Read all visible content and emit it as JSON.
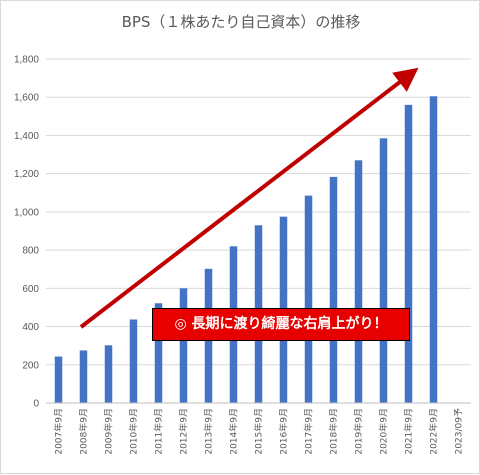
{
  "chart_data": {
    "type": "bar",
    "title": "BPS（１株あたり自己資本）の推移",
    "categories": [
      "2007年9月",
      "2008年9月",
      "2009年9月",
      "2010年9月",
      "2011年9月",
      "2012年9月",
      "2013年9月",
      "2014年9月",
      "2015年9月",
      "2016年9月",
      "2017年9月",
      "2018年9月",
      "2019年9月",
      "2020年9月",
      "2021年9月",
      "2022年9月",
      "2023/09予"
    ],
    "values": [
      243,
      275,
      302,
      437,
      522,
      600,
      702,
      820,
      930,
      975,
      1085,
      1183,
      1270,
      1385,
      1560,
      1605,
      null
    ],
    "y_ticks": [
      "0",
      "200",
      "400",
      "600",
      "800",
      "1,000",
      "1,200",
      "1,400",
      "1,600",
      "1,800"
    ],
    "ylim": [
      0,
      1800
    ],
    "bar_color": "#4472c4",
    "grid": true,
    "annotation": {
      "text": "◎ 長期に渡り綺麗な右肩上がり！",
      "box_color": "#e60000",
      "arrow_color": "#c00000"
    }
  }
}
